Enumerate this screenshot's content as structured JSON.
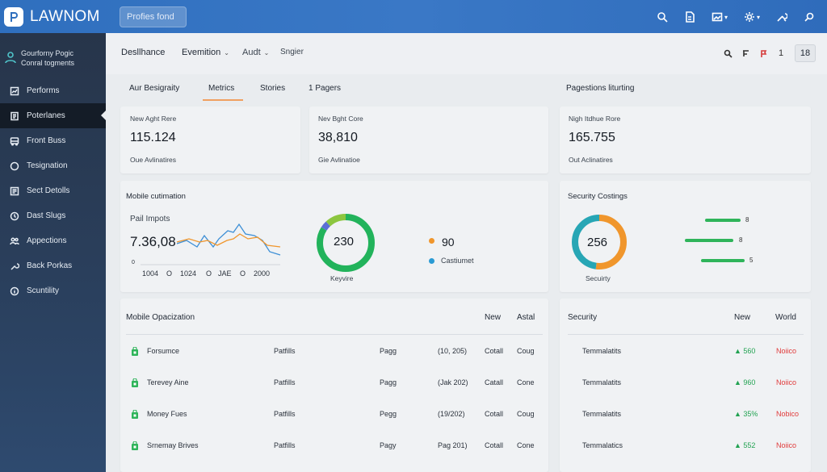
{
  "app": {
    "title": "LAWNOM",
    "search_placeholder": "Profies fond"
  },
  "org": {
    "line1": "Gourforny Pogic",
    "line2": "Conral togments"
  },
  "sidebar": {
    "items": [
      {
        "label": "Performs",
        "icon": "performance-icon"
      },
      {
        "label": "Poterlanes",
        "icon": "document-icon",
        "active": true
      },
      {
        "label": "Front Buss",
        "icon": "bus-icon"
      },
      {
        "label": "Tesignation",
        "icon": "circle-icon"
      },
      {
        "label": "Sect Detolls",
        "icon": "details-icon"
      },
      {
        "label": "Dast Slugs",
        "icon": "clock-icon"
      },
      {
        "label": "Appections",
        "icon": "people-icon"
      },
      {
        "label": "Back Porkas",
        "icon": "wrench-icon"
      },
      {
        "label": "Scuntility",
        "icon": "info-icon"
      }
    ]
  },
  "header": {
    "crumbs": [
      "Desllhance",
      "Evemition",
      "Audt",
      "Sngier"
    ],
    "count": "18",
    "tool_number": "1"
  },
  "tabs": [
    "Aur Besigraity",
    "Metrics",
    "Stories",
    "1 Pagers"
  ],
  "right_title": "Pagestions liturting",
  "kpis": [
    {
      "label": "New Aght Rere",
      "value": "115.124",
      "sub": "Oue Avlinatires"
    },
    {
      "label": "Nev Bght Core",
      "value": "38,810",
      "sub": "Gie Avlinatioe"
    },
    {
      "label": "Nigh Itdhue Rore",
      "value": "165.755",
      "sub": "Out Aclinatires"
    }
  ],
  "mobile": {
    "title": "Mobile cutimation",
    "chart_label": "Pail Impots",
    "chart_value": "7.36,08",
    "x_labels": [
      "1004",
      "O",
      "1024",
      "O",
      "JAE",
      "O",
      "2000"
    ],
    "y_zero": "0",
    "donut_value": "230",
    "donut_label": "Keyvire",
    "donut_segments": [
      {
        "color": "#22b35b",
        "fraction": 0.84
      },
      {
        "color": "#5b6fd6",
        "fraction": 0.04
      },
      {
        "color": "#8cc63f",
        "fraction": 0.12
      }
    ],
    "legend": [
      {
        "color": "#f0962c",
        "text": "90"
      },
      {
        "color": "#2a9bd4",
        "text": "Castiumet"
      }
    ]
  },
  "security": {
    "title": "Security Costings",
    "donut_value": "256",
    "donut_label": "Secuirty",
    "donut_segments": [
      {
        "color": "#f0962c",
        "fraction": 0.52
      },
      {
        "color": "#27a6b5",
        "fraction": 0.48
      }
    ],
    "bars": [
      {
        "value": "8",
        "fraction": 0.55
      },
      {
        "value": "8",
        "fraction": 0.75
      },
      {
        "value": "5",
        "fraction": 0.68
      }
    ]
  },
  "mobile_table": {
    "title": "Mobile Opacization",
    "head_new": "New",
    "head_astal": "Astal",
    "rows": [
      {
        "name": "Forsumce",
        "c2": "Patfills",
        "c3": "Pagg",
        "c4": "(10, 205)",
        "c5": "Cotall",
        "c6": "Coug"
      },
      {
        "name": "Terevey Aine",
        "c2": "Patfills",
        "c3": "Pagg",
        "c4": "(Jak 202)",
        "c5": "Catall",
        "c6": "Cone"
      },
      {
        "name": "Money Fues",
        "c2": "Patfills",
        "c3": "Pegg",
        "c4": "(19/202)",
        "c5": "Cotall",
        "c6": "Coug"
      },
      {
        "name": "Srnemay Brives",
        "c2": "Patfills",
        "c3": "Pagy",
        "c4": "Pag 201)",
        "c5": "Cotall",
        "c6": "Cone"
      }
    ]
  },
  "security_table": {
    "title": "Security",
    "head_new": "New",
    "head_world": "World",
    "rows": [
      {
        "name": "Temmalatits",
        "new": "560",
        "status": "Noiico"
      },
      {
        "name": "Temmalatits",
        "new": "960",
        "status": "Noiico"
      },
      {
        "name": "Temmalatits",
        "new": "35%",
        "status": "Nobico"
      },
      {
        "name": "Temmalatics",
        "new": "552",
        "status": "Noiico"
      }
    ]
  },
  "colors": {
    "topbar": "#3474c2",
    "sidebar": "#2a3f5c",
    "accent_green": "#22b35b",
    "accent_orange": "#f0962c",
    "accent_red": "#e03a3a"
  }
}
